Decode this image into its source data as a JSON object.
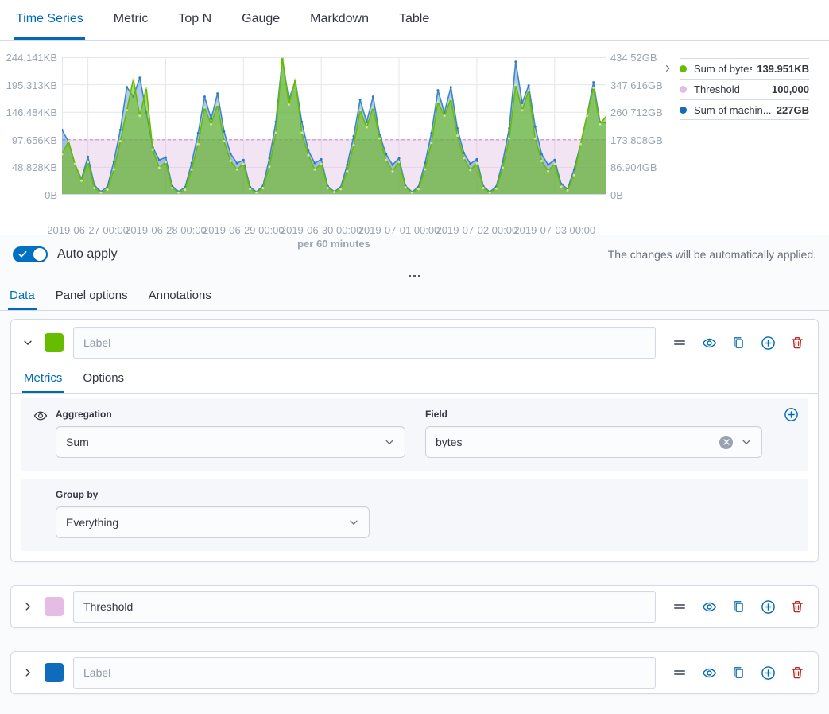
{
  "tabs_main": {
    "items": [
      {
        "label": "Time Series",
        "active": true
      },
      {
        "label": "Metric",
        "active": false
      },
      {
        "label": "Top N",
        "active": false
      },
      {
        "label": "Gauge",
        "active": false
      },
      {
        "label": "Markdown",
        "active": false
      },
      {
        "label": "Table",
        "active": false
      }
    ]
  },
  "chart": {
    "left_ticks": [
      "244.141KB",
      "195.313KB",
      "146.484KB",
      "97.656KB",
      "48.828KB",
      "0B"
    ],
    "right_ticks": [
      "434.52GB",
      "347.616GB",
      "260.712GB",
      "173.808GB",
      "86.904GB",
      "0B"
    ],
    "x_ticks": [
      "2019-06-27 00:00",
      "2019-06-28 00:00",
      "2019-06-29 00:00",
      "2019-06-30 00:00",
      "2019-07-01 00:00",
      "2019-07-02 00:00",
      "2019-07-03 00:00"
    ],
    "x_caption": "per 60 minutes",
    "legend": {
      "items": [
        {
          "label": "Sum of bytes",
          "value": "139.951KB",
          "color": "#68BC00"
        },
        {
          "label": "Threshold",
          "value": "100,000",
          "color": "#E4BCE4"
        },
        {
          "label": "Sum of machin...",
          "value": "227GB",
          "color": "#0F6CBD"
        }
      ]
    }
  },
  "chart_data": {
    "type": "area",
    "x_unit": "hours",
    "total_hours": 168,
    "point_interval_hours": 2,
    "x_gridline_hours": [
      8,
      32,
      56,
      80,
      104,
      128,
      152
    ],
    "left_axis": {
      "label_unit": "KB",
      "max": 244.141,
      "ticks": [
        0,
        48.828,
        97.656,
        146.484,
        195.313,
        244.141
      ]
    },
    "right_axis": {
      "label_unit": "GB",
      "max": 434.52,
      "ticks": [
        0,
        86.904,
        173.808,
        260.712,
        347.616,
        434.52
      ]
    },
    "threshold": {
      "name": "Threshold",
      "value_bytes": 100000,
      "value_kb": 97.656,
      "fill": "rgba(224,184,224,0.38)",
      "line_color": "#D69FD6"
    },
    "series": [
      {
        "name": "Sum of bytes",
        "axis": "left",
        "unit": "KB",
        "line_color": "#68BC00",
        "fill_color": "rgba(104,188,0,0.55)",
        "marker_color": "#CDE89E",
        "values": [
          72,
          95,
          55,
          25,
          58,
          12,
          4,
          9,
          45,
          95,
          150,
          205,
          140,
          190,
          80,
          48,
          58,
          12,
          4,
          9,
          45,
          90,
          155,
          125,
          160,
          95,
          60,
          45,
          55,
          10,
          4,
          12,
          50,
          110,
          245,
          160,
          205,
          110,
          70,
          45,
          55,
          12,
          5,
          10,
          42,
          88,
          150,
          120,
          155,
          100,
          62,
          42,
          58,
          13,
          4,
          10,
          45,
          92,
          165,
          140,
          170,
          105,
          65,
          44,
          56,
          12,
          4,
          11,
          48,
          100,
          195,
          150,
          185,
          100,
          60,
          42,
          55,
          14,
          8,
          35,
          90,
          140,
          190,
          125,
          139.951
        ]
      },
      {
        "name": "Sum of machin...",
        "axis": "right",
        "unit": "GB",
        "line_color": "#3E86C7",
        "fill_color": "rgba(62,134,199,0.42)",
        "marker_color": "#2F79BD",
        "values": [
          205,
          168,
          95,
          50,
          120,
          30,
          10,
          25,
          105,
          205,
          340,
          310,
          370,
          260,
          150,
          110,
          118,
          28,
          10,
          24,
          100,
          195,
          310,
          240,
          320,
          200,
          130,
          100,
          110,
          25,
          9,
          28,
          115,
          230,
          430,
          300,
          360,
          230,
          140,
          100,
          112,
          27,
          10,
          24,
          95,
          185,
          300,
          230,
          310,
          190,
          128,
          95,
          115,
          28,
          9,
          25,
          100,
          195,
          330,
          260,
          340,
          210,
          132,
          98,
          112,
          27,
          9,
          26,
          105,
          210,
          420,
          290,
          345,
          215,
          128,
          95,
          110,
          35,
          18,
          80,
          160,
          250,
          355,
          230,
          227
        ]
      }
    ]
  },
  "auto_apply": {
    "label": "Auto apply",
    "enabled": true,
    "hint": "The changes will be automatically applied."
  },
  "sub_tabs": {
    "items": [
      {
        "label": "Data",
        "active": true
      },
      {
        "label": "Panel options",
        "active": false
      },
      {
        "label": "Annotations",
        "active": false
      }
    ]
  },
  "series_panels": [
    {
      "color": "#68BC00",
      "label_placeholder": "Label",
      "label_value": "",
      "expanded": true,
      "tabs": [
        {
          "label": "Metrics",
          "active": true
        },
        {
          "label": "Options",
          "active": false
        }
      ],
      "metrics": {
        "aggregation_label": "Aggregation",
        "aggregation_value": "Sum",
        "field_label": "Field",
        "field_value": "bytes"
      },
      "group_by": {
        "label": "Group by",
        "value": "Everything"
      }
    },
    {
      "color": "#E4BCE4",
      "label_placeholder": "Label",
      "label_value": "Threshold",
      "expanded": false
    },
    {
      "color": "#0F6CBD",
      "label_placeholder": "Label",
      "label_value": "",
      "expanded": false
    }
  ]
}
